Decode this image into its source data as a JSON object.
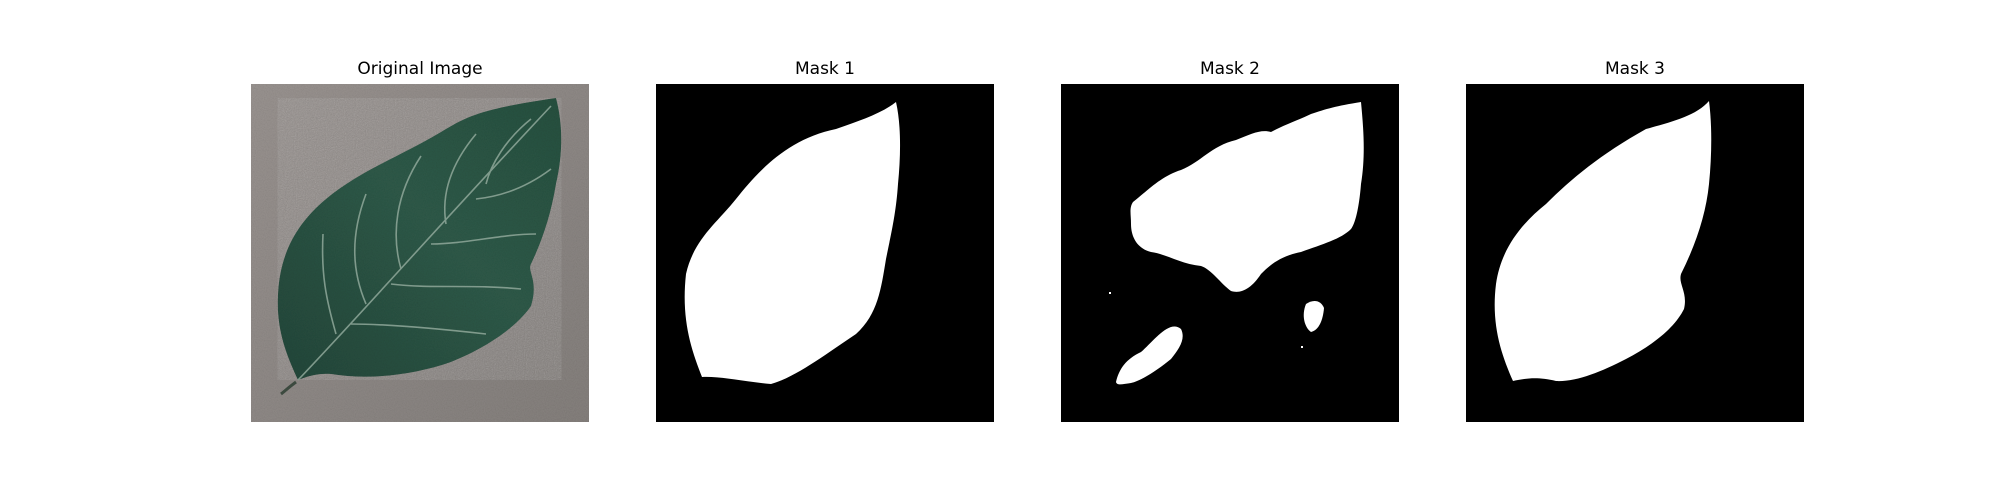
{
  "figure": {
    "panels": [
      {
        "title": "Original Image",
        "kind": "photo",
        "subject": "leaf-on-gray-surface"
      },
      {
        "title": "Mask 1",
        "kind": "binary-mask"
      },
      {
        "title": "Mask 2",
        "kind": "binary-mask"
      },
      {
        "title": "Mask 3",
        "kind": "binary-mask"
      }
    ]
  },
  "colors": {
    "background": "#ffffff",
    "mask_background": "#000000",
    "mask_foreground": "#ffffff",
    "photo_surface": "#8f8a87",
    "leaf_dark": "#24493a",
    "leaf_mid": "#315f4c",
    "leaf_vein": "#9eb3a7"
  }
}
